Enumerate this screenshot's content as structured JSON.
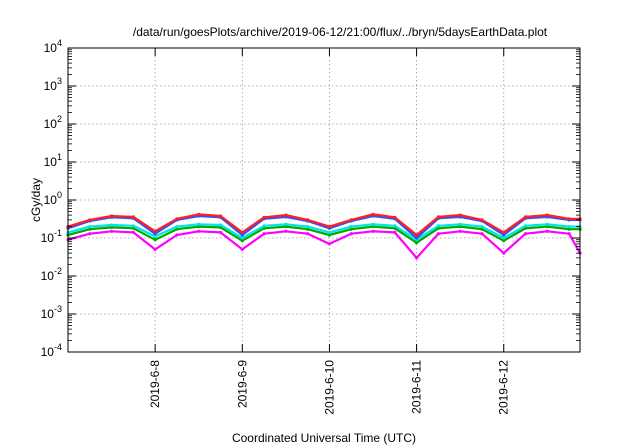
{
  "chart_data": {
    "type": "line",
    "title": "/data/run/goesPlots/archive/2019-06-12/21:00/flux/../bryn/5daysEarthData.plot",
    "xlabel": "Coordinated Universal Time (UTC)",
    "ylabel": "cGy/day",
    "y_scale": "log",
    "ylim": [
      0.0001,
      10000
    ],
    "y_ticks": [
      {
        "value": 0.0001,
        "base": "10",
        "exp": "-4"
      },
      {
        "value": 0.001,
        "base": "10",
        "exp": "-3"
      },
      {
        "value": 0.01,
        "base": "10",
        "exp": "-2"
      },
      {
        "value": 0.1,
        "base": "10",
        "exp": "-1"
      },
      {
        "value": 1,
        "base": "10",
        "exp": "0"
      },
      {
        "value": 10,
        "base": "10",
        "exp": "1"
      },
      {
        "value": 100,
        "base": "10",
        "exp": "2"
      },
      {
        "value": 1000,
        "base": "10",
        "exp": "3"
      },
      {
        "value": 10000,
        "base": "10",
        "exp": "4"
      }
    ],
    "xlim": [
      "2019-06-07T00:00",
      "2019-06-12T21:00"
    ],
    "x_ticks": [
      {
        "value": "2019-06-08T00:00",
        "label": "2019-6-8"
      },
      {
        "value": "2019-06-09T00:00",
        "label": "2019-6-9"
      },
      {
        "value": "2019-06-10T00:00",
        "label": "2019-6-10"
      },
      {
        "value": "2019-06-11T00:00",
        "label": "2019-6-11"
      },
      {
        "value": "2019-06-12T00:00",
        "label": "2019-6-12"
      }
    ],
    "grid": true,
    "legend": "none",
    "x": [
      "2019-06-07T00:00",
      "2019-06-07T06:00",
      "2019-06-07T12:00",
      "2019-06-07T18:00",
      "2019-06-08T00:00",
      "2019-06-08T06:00",
      "2019-06-08T12:00",
      "2019-06-08T18:00",
      "2019-06-09T00:00",
      "2019-06-09T06:00",
      "2019-06-09T12:00",
      "2019-06-09T18:00",
      "2019-06-10T00:00",
      "2019-06-10T06:00",
      "2019-06-10T12:00",
      "2019-06-10T18:00",
      "2019-06-11T00:00",
      "2019-06-11T06:00",
      "2019-06-11T12:00",
      "2019-06-11T18:00",
      "2019-06-12T00:00",
      "2019-06-12T06:00",
      "2019-06-12T12:00",
      "2019-06-12T18:00",
      "2019-06-12T21:00"
    ],
    "series": [
      {
        "color": "#ff2020",
        "values": [
          0.2,
          0.3,
          0.38,
          0.36,
          0.15,
          0.32,
          0.42,
          0.38,
          0.14,
          0.35,
          0.4,
          0.3,
          0.2,
          0.3,
          0.42,
          0.35,
          0.12,
          0.36,
          0.4,
          0.3,
          0.14,
          0.36,
          0.4,
          0.32,
          0.32
        ]
      },
      {
        "color": "#3050ff",
        "values": [
          0.18,
          0.28,
          0.35,
          0.33,
          0.13,
          0.3,
          0.38,
          0.35,
          0.12,
          0.32,
          0.36,
          0.28,
          0.18,
          0.28,
          0.38,
          0.32,
          0.1,
          0.33,
          0.36,
          0.28,
          0.12,
          0.33,
          0.36,
          0.3,
          0.3
        ]
      },
      {
        "color": "#00e5e5",
        "values": [
          0.14,
          0.2,
          0.22,
          0.21,
          0.11,
          0.2,
          0.23,
          0.22,
          0.1,
          0.21,
          0.23,
          0.2,
          0.14,
          0.2,
          0.23,
          0.21,
          0.09,
          0.21,
          0.23,
          0.2,
          0.1,
          0.21,
          0.23,
          0.2,
          0.2
        ]
      },
      {
        "color": "#00aa00",
        "values": [
          0.12,
          0.17,
          0.19,
          0.18,
          0.09,
          0.17,
          0.2,
          0.19,
          0.085,
          0.18,
          0.2,
          0.17,
          0.12,
          0.17,
          0.2,
          0.18,
          0.075,
          0.18,
          0.2,
          0.17,
          0.085,
          0.18,
          0.2,
          0.17,
          0.17
        ]
      },
      {
        "color": "#ff00ff",
        "values": [
          0.09,
          0.13,
          0.15,
          0.14,
          0.05,
          0.12,
          0.15,
          0.14,
          0.05,
          0.13,
          0.15,
          0.13,
          0.07,
          0.13,
          0.15,
          0.14,
          0.03,
          0.13,
          0.15,
          0.13,
          0.04,
          0.13,
          0.15,
          0.13,
          0.04
        ]
      }
    ]
  }
}
